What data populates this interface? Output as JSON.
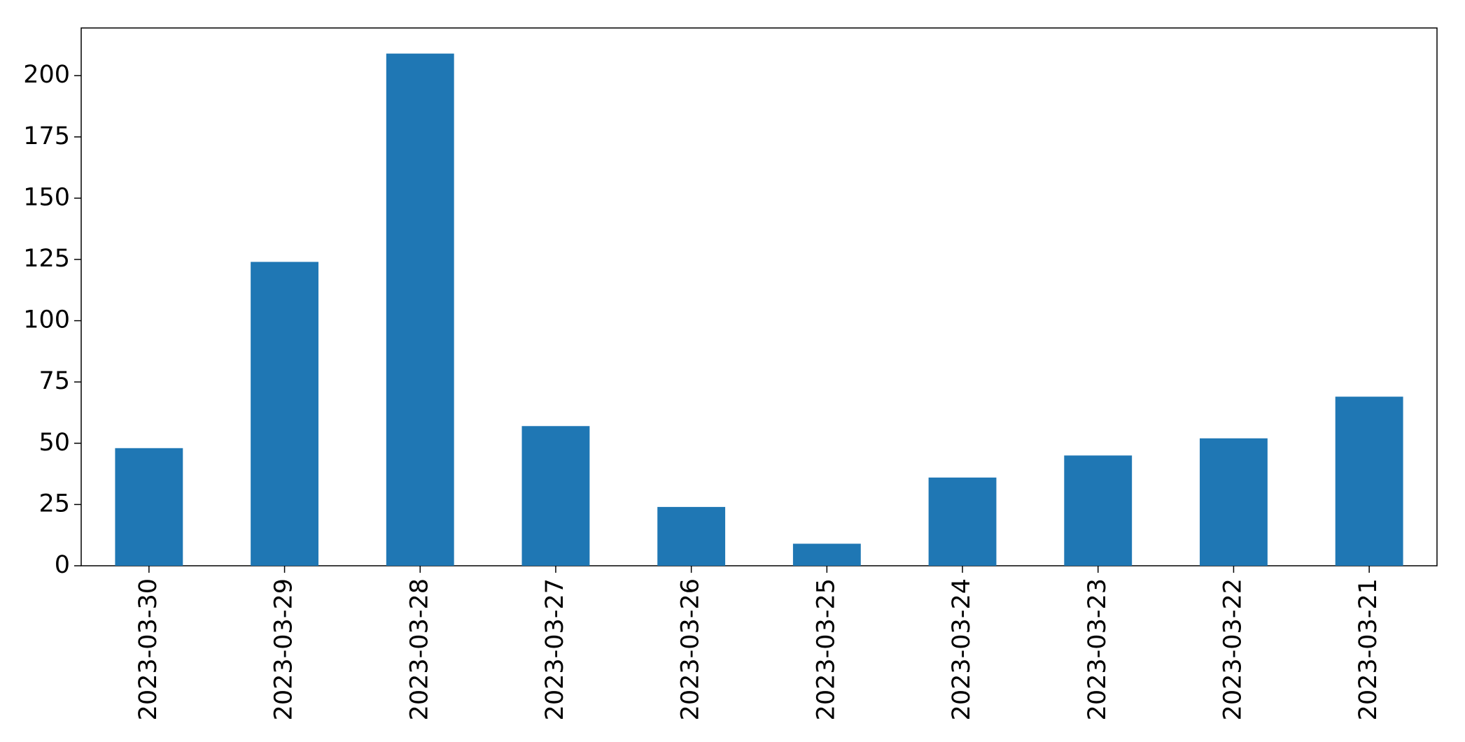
{
  "chart_data": {
    "type": "bar",
    "categories": [
      "2023-03-30",
      "2023-03-29",
      "2023-03-28",
      "2023-03-27",
      "2023-03-26",
      "2023-03-25",
      "2023-03-24",
      "2023-03-23",
      "2023-03-22",
      "2023-03-21"
    ],
    "values": [
      48,
      124,
      209,
      57,
      24,
      9,
      36,
      45,
      52,
      69
    ],
    "color": "#1f77b4",
    "ylim": [
      0,
      219.45
    ],
    "yticks": [
      0,
      25,
      50,
      75,
      100,
      125,
      150,
      175,
      200
    ]
  }
}
